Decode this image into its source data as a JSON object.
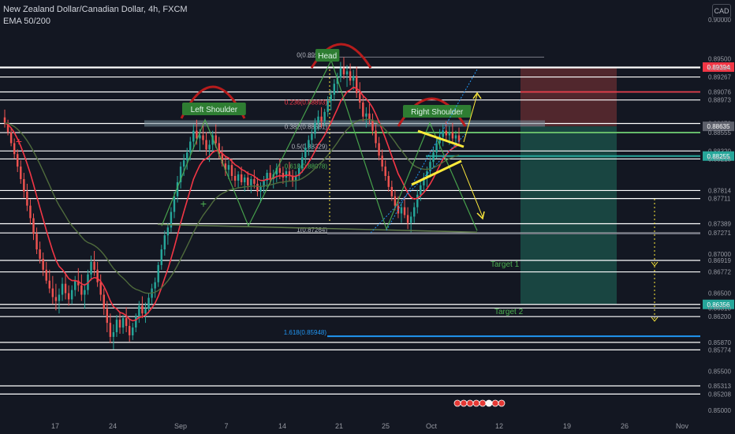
{
  "header": {
    "title": "New Zealand Dollar/Canadian Dollar, 4h, FXCM",
    "indicator": "EMA 50/200",
    "currency": "CAD"
  },
  "colors": {
    "background": "#131722",
    "candle_up": "#26a69a",
    "candle_down": "#ef5350",
    "ema50": "#f23645",
    "ema200": "#4f6b3c",
    "level_line": "#ffffff",
    "pattern": "#4caf50",
    "head_shoulder_arc": "#b71c1c",
    "label_green": "#4caf50",
    "fib_blue": "#2196f3",
    "stop_zone": "#5d2a2f",
    "target_zone": "#1b4d47",
    "channel": "#ffeb3b"
  },
  "chart_data": {
    "type": "candlestick",
    "symbol": "NZDCAD",
    "timeframe": "4h",
    "ylim": [
      0.8495,
      0.8909
    ],
    "y_axis_labels": [
      "0.90000",
      "0.89500",
      "0.89394",
      "0.89384",
      "0.89267",
      "0.89076",
      "0.88973",
      "0.88672",
      "0.88635",
      "0.88555",
      "0.88320",
      "0.88255",
      "0.88218",
      "0.87814",
      "0.87711",
      "0.87389",
      "0.87271",
      "0.87000",
      "0.86919",
      "0.86772",
      "0.86500",
      "0.86356",
      "0.86310",
      "0.86200",
      "0.85870",
      "0.85774",
      "0.85500",
      "0.85313",
      "0.85208",
      "0.85000"
    ],
    "x_axis_labels": [
      "17",
      "24",
      "Sep",
      "7",
      "14",
      "21",
      "25",
      "Oct",
      "12",
      "19",
      "26",
      "Nov"
    ],
    "highlighted_prices": [
      {
        "text": "0.89394",
        "color": "#f23645"
      },
      {
        "text": "0.88635",
        "color": "#5d606b"
      },
      {
        "text": "0.88255",
        "color": "#26a69a"
      },
      {
        "text": "0.86356",
        "color": "#26a69a"
      }
    ],
    "horizontal_levels": [
      0.89394,
      0.89384,
      0.89267,
      0.89076,
      0.88973,
      0.88672,
      0.88555,
      0.8832,
      0.88218,
      0.87814,
      0.87711,
      0.87389,
      0.87271,
      0.86919,
      0.86772,
      0.86356,
      0.8631,
      0.862,
      0.8587,
      0.85774,
      0.85313,
      0.85208
    ],
    "fib_levels": [
      {
        "text": "0(0.89501)",
        "value": 0.89501
      },
      {
        "text": "0.236(0.88893)",
        "value": 0.88893
      },
      {
        "text": "0.382(0.88581)",
        "value": 0.88581
      },
      {
        "text": "0.5(0.88329)",
        "value": 0.88329
      },
      {
        "text": "0.618(0.88078)",
        "value": 0.88078
      },
      {
        "text": "1(0.87264)",
        "value": 0.87264
      },
      {
        "text": "1.618(0.85948)",
        "value": 0.85948
      }
    ],
    "pattern_labels": [
      "Left Shoulder",
      "Head",
      "Right Shoulder"
    ],
    "target_labels": [
      "Target 1",
      "Target 2"
    ],
    "candles": [
      [
        0.8875,
        0.8885,
        0.8862,
        0.8868
      ],
      [
        0.8868,
        0.8872,
        0.8852,
        0.8856
      ],
      [
        0.8856,
        0.8862,
        0.8838,
        0.8842
      ],
      [
        0.8842,
        0.8848,
        0.8822,
        0.8828
      ],
      [
        0.8828,
        0.8834,
        0.8805,
        0.8812
      ],
      [
        0.8812,
        0.882,
        0.879,
        0.8796
      ],
      [
        0.8796,
        0.8804,
        0.8772,
        0.878
      ],
      [
        0.878,
        0.879,
        0.8755,
        0.8762
      ],
      [
        0.8762,
        0.877,
        0.8738,
        0.8746
      ],
      [
        0.8746,
        0.8752,
        0.8718,
        0.8726
      ],
      [
        0.8726,
        0.8734,
        0.87,
        0.8706
      ],
      [
        0.8706,
        0.8716,
        0.8688,
        0.8694
      ],
      [
        0.8694,
        0.8702,
        0.8672,
        0.868
      ],
      [
        0.868,
        0.869,
        0.8662,
        0.8666
      ],
      [
        0.8666,
        0.868,
        0.865,
        0.8656
      ],
      [
        0.8656,
        0.8672,
        0.8636,
        0.8645
      ],
      [
        0.8645,
        0.8662,
        0.8628,
        0.864
      ],
      [
        0.864,
        0.8656,
        0.8624,
        0.8648
      ],
      [
        0.8648,
        0.867,
        0.864,
        0.8662
      ],
      [
        0.8662,
        0.8676,
        0.8642,
        0.865
      ],
      [
        0.865,
        0.866,
        0.8634,
        0.8642
      ],
      [
        0.8642,
        0.866,
        0.8636,
        0.8654
      ],
      [
        0.8654,
        0.8672,
        0.8646,
        0.8666
      ],
      [
        0.8666,
        0.8682,
        0.8652,
        0.866
      ],
      [
        0.866,
        0.8674,
        0.864,
        0.8648
      ],
      [
        0.8648,
        0.8662,
        0.863,
        0.8654
      ],
      [
        0.8654,
        0.868,
        0.8648,
        0.8674
      ],
      [
        0.8674,
        0.8698,
        0.8666,
        0.869
      ],
      [
        0.869,
        0.8704,
        0.8672,
        0.868
      ],
      [
        0.868,
        0.869,
        0.8658,
        0.8664
      ],
      [
        0.8664,
        0.8674,
        0.864,
        0.8648
      ],
      [
        0.8648,
        0.8656,
        0.8622,
        0.863
      ],
      [
        0.863,
        0.864,
        0.86,
        0.8612
      ],
      [
        0.8612,
        0.8624,
        0.8586,
        0.8594
      ],
      [
        0.8594,
        0.861,
        0.8578,
        0.86
      ],
      [
        0.86,
        0.8622,
        0.8594,
        0.8616
      ],
      [
        0.8616,
        0.8626,
        0.8598,
        0.8606
      ],
      [
        0.8606,
        0.8622,
        0.8598,
        0.8618
      ],
      [
        0.8618,
        0.8632,
        0.86,
        0.8608
      ],
      [
        0.8608,
        0.8616,
        0.8588,
        0.8596
      ],
      [
        0.8596,
        0.8612,
        0.859,
        0.8606
      ],
      [
        0.8606,
        0.8624,
        0.86,
        0.862
      ],
      [
        0.862,
        0.864,
        0.8612,
        0.8634
      ],
      [
        0.8634,
        0.8646,
        0.8618,
        0.8624
      ],
      [
        0.8624,
        0.8638,
        0.8612,
        0.863
      ],
      [
        0.863,
        0.865,
        0.8624,
        0.8644
      ],
      [
        0.8644,
        0.8662,
        0.8636,
        0.8656
      ],
      [
        0.8656,
        0.867,
        0.8644,
        0.8664
      ],
      [
        0.8664,
        0.869,
        0.8658,
        0.8686
      ],
      [
        0.8686,
        0.8712,
        0.868,
        0.8706
      ],
      [
        0.8706,
        0.873,
        0.8698,
        0.8724
      ],
      [
        0.8724,
        0.874,
        0.8712,
        0.8734
      ],
      [
        0.8734,
        0.876,
        0.8728,
        0.8754
      ],
      [
        0.8754,
        0.878,
        0.8746,
        0.8774
      ],
      [
        0.8774,
        0.88,
        0.8766,
        0.8792
      ],
      [
        0.8792,
        0.8818,
        0.8784,
        0.8812
      ],
      [
        0.8812,
        0.8828,
        0.88,
        0.882
      ],
      [
        0.882,
        0.8836,
        0.8808,
        0.883
      ],
      [
        0.883,
        0.885,
        0.882,
        0.8844
      ],
      [
        0.8844,
        0.8866,
        0.8834,
        0.8858
      ],
      [
        0.8858,
        0.8872,
        0.884,
        0.8848
      ],
      [
        0.8848,
        0.886,
        0.8832,
        0.8852
      ],
      [
        0.8852,
        0.8868,
        0.884,
        0.8846
      ],
      [
        0.8846,
        0.8856,
        0.8826,
        0.8834
      ],
      [
        0.8834,
        0.8846,
        0.8818,
        0.884
      ],
      [
        0.884,
        0.8858,
        0.883,
        0.8852
      ],
      [
        0.8852,
        0.8866,
        0.8836,
        0.8842
      ],
      [
        0.8842,
        0.885,
        0.8822,
        0.8828
      ],
      [
        0.8828,
        0.8838,
        0.8812,
        0.8816
      ],
      [
        0.8816,
        0.8826,
        0.88,
        0.8808
      ],
      [
        0.8808,
        0.882,
        0.8796,
        0.8814
      ],
      [
        0.8814,
        0.8822,
        0.8794,
        0.88
      ],
      [
        0.88,
        0.881,
        0.8786,
        0.8794
      ],
      [
        0.8794,
        0.8806,
        0.8784,
        0.8802
      ],
      [
        0.8802,
        0.8812,
        0.8788,
        0.8792
      ],
      [
        0.8792,
        0.8802,
        0.878,
        0.8798
      ],
      [
        0.8798,
        0.8806,
        0.8782,
        0.8788
      ],
      [
        0.8788,
        0.88,
        0.8778,
        0.8796
      ],
      [
        0.8796,
        0.8808,
        0.8784,
        0.879
      ],
      [
        0.879,
        0.8798,
        0.8774,
        0.878
      ],
      [
        0.878,
        0.8792,
        0.8766,
        0.8786
      ],
      [
        0.8786,
        0.88,
        0.8778,
        0.8794
      ],
      [
        0.8794,
        0.8808,
        0.8786,
        0.8804
      ],
      [
        0.8804,
        0.8814,
        0.879,
        0.8796
      ],
      [
        0.8796,
        0.8808,
        0.8784,
        0.8802
      ],
      [
        0.8802,
        0.8816,
        0.8792,
        0.881
      ],
      [
        0.881,
        0.8822,
        0.8796,
        0.8804
      ],
      [
        0.8804,
        0.8812,
        0.879,
        0.8798
      ],
      [
        0.8798,
        0.881,
        0.8786,
        0.8806
      ],
      [
        0.8806,
        0.8818,
        0.8794,
        0.88
      ],
      [
        0.88,
        0.8808,
        0.8786,
        0.8794
      ],
      [
        0.8794,
        0.8806,
        0.8782,
        0.88
      ],
      [
        0.88,
        0.8816,
        0.8794,
        0.881
      ],
      [
        0.881,
        0.883,
        0.8804,
        0.8824
      ],
      [
        0.8824,
        0.8842,
        0.8816,
        0.8836
      ],
      [
        0.8836,
        0.8852,
        0.8826,
        0.8846
      ],
      [
        0.8846,
        0.886,
        0.8834,
        0.8854
      ],
      [
        0.8854,
        0.8874,
        0.8848,
        0.8868
      ],
      [
        0.8868,
        0.8884,
        0.8858,
        0.8876
      ],
      [
        0.8876,
        0.8888,
        0.8862,
        0.887
      ],
      [
        0.887,
        0.8886,
        0.8864,
        0.8882
      ],
      [
        0.8882,
        0.8902,
        0.8876,
        0.8896
      ],
      [
        0.8896,
        0.891,
        0.8884,
        0.8904
      ],
      [
        0.8904,
        0.8924,
        0.8896,
        0.8918
      ],
      [
        0.8918,
        0.8932,
        0.8906,
        0.8926
      ],
      [
        0.8926,
        0.8946,
        0.892,
        0.8938
      ],
      [
        0.8938,
        0.8952,
        0.8924,
        0.893
      ],
      [
        0.893,
        0.8942,
        0.8914,
        0.8934
      ],
      [
        0.8934,
        0.8944,
        0.8916,
        0.8922
      ],
      [
        0.8922,
        0.8936,
        0.891,
        0.8928
      ],
      [
        0.8928,
        0.894,
        0.89,
        0.8906
      ],
      [
        0.8906,
        0.892,
        0.8886,
        0.8894
      ],
      [
        0.8894,
        0.8902,
        0.887,
        0.8876
      ],
      [
        0.8876,
        0.8888,
        0.8862,
        0.888
      ],
      [
        0.888,
        0.8892,
        0.8866,
        0.8872
      ],
      [
        0.8872,
        0.888,
        0.8852,
        0.8858
      ],
      [
        0.8858,
        0.8866,
        0.8836,
        0.8842
      ],
      [
        0.8842,
        0.885,
        0.882,
        0.8826
      ],
      [
        0.8826,
        0.8834,
        0.8806,
        0.8812
      ],
      [
        0.8812,
        0.882,
        0.8794,
        0.88
      ],
      [
        0.88,
        0.8806,
        0.878,
        0.8786
      ],
      [
        0.8786,
        0.8794,
        0.8768,
        0.8774
      ],
      [
        0.8774,
        0.8782,
        0.8756,
        0.8762
      ],
      [
        0.8762,
        0.8774,
        0.8746,
        0.8752
      ],
      [
        0.8752,
        0.8766,
        0.874,
        0.876
      ],
      [
        0.876,
        0.8774,
        0.8746,
        0.875
      ],
      [
        0.875,
        0.876,
        0.8732,
        0.874
      ],
      [
        0.874,
        0.8754,
        0.8728,
        0.8748
      ],
      [
        0.8748,
        0.8766,
        0.874,
        0.876
      ],
      [
        0.876,
        0.8782,
        0.8752,
        0.8776
      ],
      [
        0.8776,
        0.8794,
        0.8768,
        0.8788
      ],
      [
        0.8788,
        0.8804,
        0.878,
        0.8798
      ],
      [
        0.8798,
        0.8812,
        0.8786,
        0.8806
      ],
      [
        0.8806,
        0.8824,
        0.8798,
        0.8818
      ],
      [
        0.8818,
        0.8836,
        0.881,
        0.883
      ],
      [
        0.883,
        0.885,
        0.8822,
        0.8842
      ],
      [
        0.8842,
        0.886,
        0.8834,
        0.885
      ],
      [
        0.885,
        0.8866,
        0.8838,
        0.8858
      ],
      [
        0.8858,
        0.887,
        0.8844,
        0.8852
      ],
      [
        0.8852,
        0.8864,
        0.884,
        0.8856
      ],
      [
        0.8856,
        0.8868,
        0.8842,
        0.8848
      ],
      [
        0.8848,
        0.8858,
        0.8836,
        0.8852
      ],
      [
        0.8852,
        0.8862,
        0.8838,
        0.8844
      ]
    ]
  },
  "toolbar_icons": [
    "flag-icon",
    "flag-icon",
    "flag-icon",
    "flag-icon",
    "flag-icon",
    "flag-icon",
    "flag-icon",
    "flag-icon"
  ]
}
